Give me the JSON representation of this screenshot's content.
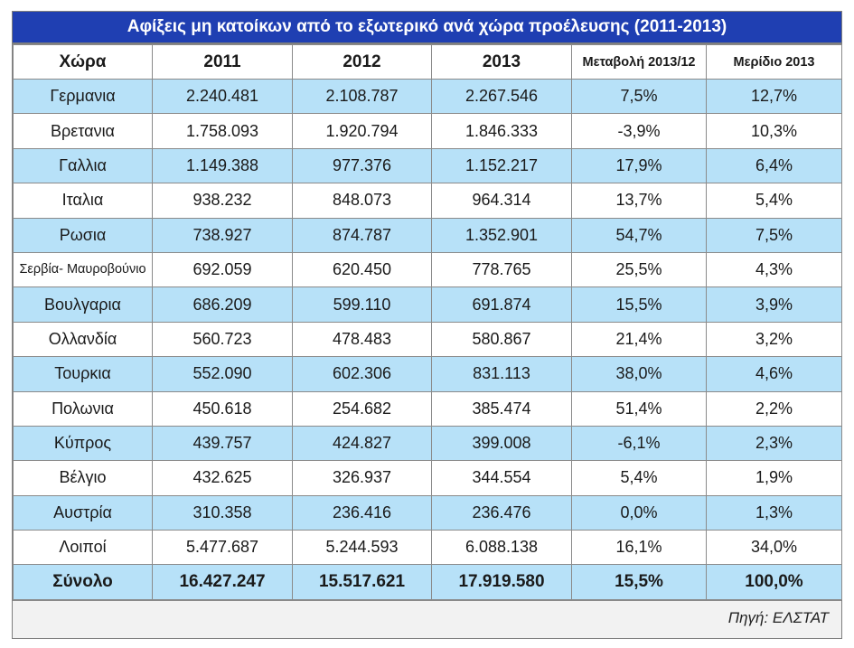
{
  "title": "Αφίξεις μη κατοίκων από το εξωτερικό ανά χώρα προέλευσης (2011-2013)",
  "source": "Πηγή: ΕΛΣΤΑΤ",
  "headers": [
    "Χώρα",
    "2011",
    "2012",
    "2013",
    "Μεταβολή 2013/12",
    "Μερίδιο 2013"
  ],
  "rows": [
    [
      "Γερμανια",
      "2.240.481",
      "2.108.787",
      "2.267.546",
      "7,5%",
      "12,7%"
    ],
    [
      "Βρετανια",
      "1.758.093",
      "1.920.794",
      "1.846.333",
      "-3,9%",
      "10,3%"
    ],
    [
      "Γαλλια",
      "1.149.388",
      "977.376",
      "1.152.217",
      "17,9%",
      "6,4%"
    ],
    [
      "Ιταλια",
      "938.232",
      "848.073",
      "964.314",
      "13,7%",
      "5,4%"
    ],
    [
      "Ρωσια",
      "738.927",
      "874.787",
      "1.352.901",
      "54,7%",
      "7,5%"
    ],
    [
      "Σερβία- Μαυροβούνιο",
      "692.059",
      "620.450",
      "778.765",
      "25,5%",
      "4,3%"
    ],
    [
      "Βουλγαρια",
      "686.209",
      "599.110",
      "691.874",
      "15,5%",
      "3,9%"
    ],
    [
      "Ολλανδία",
      "560.723",
      "478.483",
      "580.867",
      "21,4%",
      "3,2%"
    ],
    [
      "Τουρκια",
      "552.090",
      "602.306",
      "831.113",
      "38,0%",
      "4,6%"
    ],
    [
      "Πολωνια",
      "450.618",
      "254.682",
      "385.474",
      "51,4%",
      "2,2%"
    ],
    [
      "Κύπρος",
      "439.757",
      "424.827",
      "399.008",
      "-6,1%",
      "2,3%"
    ],
    [
      "Βέλγιο",
      "432.625",
      "326.937",
      "344.554",
      "5,4%",
      "1,9%"
    ],
    [
      "Αυστρία",
      "310.358",
      "236.416",
      "236.476",
      "0,0%",
      "1,3%"
    ],
    [
      "Λοιποί",
      "5.477.687",
      "5.244.593",
      "6.088.138",
      "16,1%",
      "34,0%"
    ]
  ],
  "total": [
    "Σύνολο",
    "16.427.247",
    "15.517.621",
    "17.919.580",
    "15,5%",
    "100,0%"
  ],
  "colors": {
    "title_bg": "#1f3fb2",
    "row_shade": "#b7e1f8",
    "source_bg": "#f2f2f2"
  },
  "chart_data": {
    "type": "table",
    "title": "Αφίξεις μη κατοίκων από το εξωτερικό ανά χώρα προέλευσης (2011-2013)",
    "columns": [
      "Χώρα",
      "2011",
      "2012",
      "2013",
      "Μεταβολή 2013/12",
      "Μερίδιο 2013"
    ]
  }
}
